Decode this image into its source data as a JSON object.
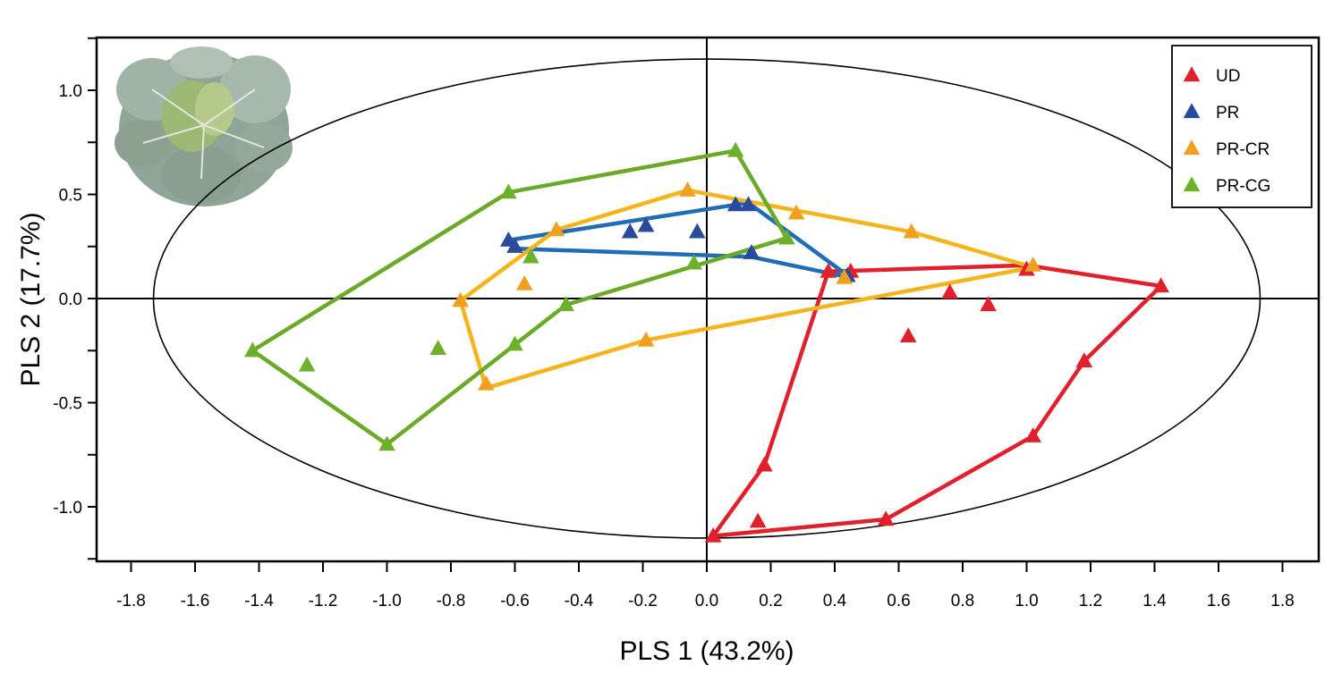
{
  "chart_data": {
    "type": "scatter",
    "title": "",
    "xlabel": "PLS 1 (43.2%)",
    "ylabel": "PLS 2 (17.7%)",
    "xlim": [
      -2.0,
      1.9
    ],
    "ylim": [
      -1.27,
      1.27
    ],
    "x_ticks": [
      -1.8,
      -1.6,
      -1.4,
      -1.2,
      -1.0,
      -0.8,
      -0.6,
      -0.4,
      -0.2,
      0.0,
      0.2,
      0.4,
      0.6,
      0.8,
      1.0,
      1.2,
      1.4,
      1.6,
      1.8
    ],
    "x_tick_labels": [
      "-1.8",
      "-1.6",
      "-1.4",
      "-1.2",
      "-1.0",
      "-0.8",
      "-0.6",
      "-0.4",
      "-0.2",
      "0.0",
      "0.2",
      "0.4",
      "0.6",
      "0.8",
      "1.0",
      "1.2",
      "1.4",
      "1.6",
      "1.8"
    ],
    "y_ticks": [
      1.0,
      0.5,
      0.0,
      -0.5,
      -1.0
    ],
    "y_tick_labels": [
      "1.0",
      "0.5",
      "0.0",
      "-0.5",
      "-1.0"
    ],
    "y_minor_ticks": [
      1.25,
      0.75,
      0.25,
      -0.25,
      -0.75,
      -1.25
    ],
    "ellipse": {
      "cx": 0.0,
      "cy": 0.0,
      "rx": 1.73,
      "ry": 1.15
    },
    "grid": false,
    "legend_position": "top-right",
    "series": [
      {
        "name": "UD",
        "color": "#e0202a",
        "points": [
          [
            0.38,
            0.13
          ],
          [
            0.45,
            0.13
          ],
          [
            1.0,
            0.14
          ],
          [
            1.42,
            0.06
          ],
          [
            0.76,
            0.03
          ],
          [
            0.88,
            -0.03
          ],
          [
            0.63,
            -0.18
          ],
          [
            1.18,
            -0.3
          ],
          [
            1.02,
            -0.66
          ],
          [
            0.18,
            -0.8
          ],
          [
            0.56,
            -1.06
          ],
          [
            0.16,
            -1.07
          ],
          [
            0.02,
            -1.14
          ]
        ],
        "hull": [
          [
            0.38,
            0.13
          ],
          [
            1.0,
            0.16
          ],
          [
            1.42,
            0.06
          ],
          [
            1.18,
            -0.3
          ],
          [
            1.02,
            -0.66
          ],
          [
            0.56,
            -1.06
          ],
          [
            0.02,
            -1.14
          ],
          [
            0.18,
            -0.8
          ],
          [
            0.38,
            0.13
          ]
        ]
      },
      {
        "name": "PR",
        "color": "#2a4a9c",
        "line_color": "#1f6db5",
        "points": [
          [
            -0.62,
            0.28
          ],
          [
            -0.6,
            0.25
          ],
          [
            -0.24,
            0.32
          ],
          [
            -0.19,
            0.35
          ],
          [
            -0.03,
            0.32
          ],
          [
            0.09,
            0.45
          ],
          [
            0.13,
            0.45
          ],
          [
            0.14,
            0.22
          ],
          [
            0.44,
            0.11
          ]
        ],
        "hull": [
          [
            -0.62,
            0.28
          ],
          [
            0.13,
            0.46
          ],
          [
            0.45,
            0.1
          ],
          [
            0.14,
            0.2
          ],
          [
            -0.6,
            0.24
          ],
          [
            -0.62,
            0.28
          ]
        ]
      },
      {
        "name": "PR-CR",
        "color": "#f0a020",
        "line_color": "#f4b41a",
        "points": [
          [
            -0.06,
            0.52
          ],
          [
            0.28,
            0.41
          ],
          [
            0.64,
            0.32
          ],
          [
            -0.47,
            0.33
          ],
          [
            -0.57,
            0.07
          ],
          [
            -0.77,
            -0.01
          ],
          [
            1.02,
            0.16
          ],
          [
            0.43,
            0.1
          ],
          [
            -0.19,
            -0.2
          ],
          [
            -0.69,
            -0.41
          ]
        ],
        "hull": [
          [
            -0.06,
            0.52
          ],
          [
            0.64,
            0.32
          ],
          [
            1.02,
            0.15
          ],
          [
            -0.19,
            -0.2
          ],
          [
            -0.69,
            -0.43
          ],
          [
            -0.77,
            -0.01
          ],
          [
            -0.47,
            0.33
          ],
          [
            -0.06,
            0.52
          ]
        ]
      },
      {
        "name": "PR-CG",
        "color": "#6cb12a",
        "line_color": "#6aaa28",
        "points": [
          [
            0.09,
            0.71
          ],
          [
            -0.62,
            0.51
          ],
          [
            0.25,
            0.29
          ],
          [
            -0.55,
            0.2
          ],
          [
            -0.04,
            0.17
          ],
          [
            -0.44,
            -0.03
          ],
          [
            -0.6,
            -0.22
          ],
          [
            -0.84,
            -0.24
          ],
          [
            -1.42,
            -0.25
          ],
          [
            -1.25,
            -0.32
          ],
          [
            -1.0,
            -0.7
          ]
        ],
        "hull": [
          [
            0.09,
            0.71
          ],
          [
            0.25,
            0.29
          ],
          [
            -0.44,
            -0.03
          ],
          [
            -1.0,
            -0.7
          ],
          [
            -1.42,
            -0.25
          ],
          [
            -0.62,
            0.51
          ],
          [
            0.09,
            0.71
          ]
        ]
      }
    ]
  },
  "icons": {
    "plant_photo": "cabbage-plant-photo"
  }
}
